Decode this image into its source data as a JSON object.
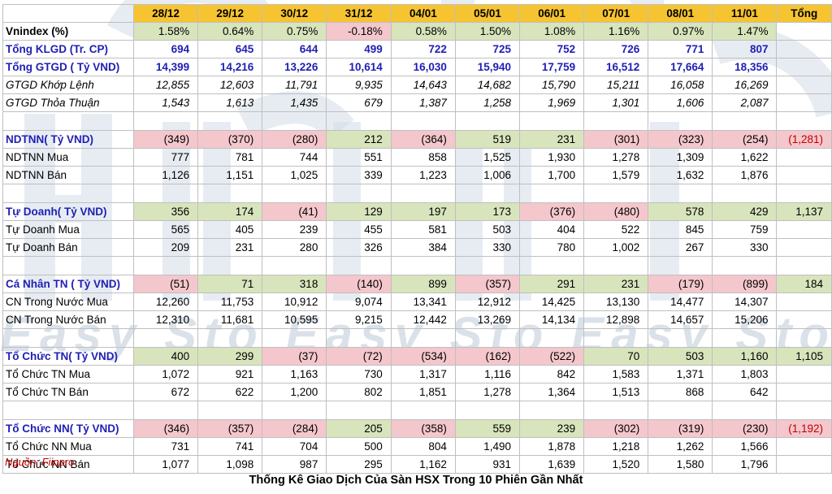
{
  "header": {
    "dates": [
      "28/12",
      "29/12",
      "30/12",
      "31/12",
      "04/01",
      "05/01",
      "06/01",
      "07/01",
      "08/01",
      "11/01"
    ],
    "total": "Tổng"
  },
  "groups": [
    {
      "rows": [
        {
          "label": "Vnindex (%)",
          "style": "head",
          "values": [
            "1.58%",
            "0.64%",
            "0.75%",
            "-0.18%",
            "0.58%",
            "1.50%",
            "1.08%",
            "1.16%",
            "0.97%",
            "1.47%"
          ]
        },
        {
          "label": "Tổng KLGD (Tr. CP)",
          "style": "blue",
          "values": [
            "694",
            "645",
            "644",
            "499",
            "722",
            "725",
            "752",
            "726",
            "771",
            "807"
          ]
        },
        {
          "label": "Tổng GTGD ( Tỷ VND)",
          "style": "blue",
          "values": [
            "14,399",
            "14,216",
            "13,226",
            "10,614",
            "16,030",
            "15,940",
            "17,759",
            "16,512",
            "17,664",
            "18,356"
          ]
        },
        {
          "label": "GTGD Khớp Lệnh",
          "style": "italic",
          "values": [
            "12,855",
            "12,603",
            "11,791",
            "9,935",
            "14,643",
            "14,682",
            "15,790",
            "15,211",
            "16,058",
            "16,269"
          ]
        },
        {
          "label": "GTGD Thỏa Thuận",
          "style": "italic",
          "values": [
            "1,543",
            "1,613",
            "1,435",
            "679",
            "1,387",
            "1,258",
            "1,969",
            "1,301",
            "1,606",
            "2,087"
          ]
        }
      ]
    },
    {
      "rows": [
        {
          "label": "NDTNN( Tỷ VND)",
          "style": "net",
          "values": [
            "(349)",
            "(370)",
            "(280)",
            "212",
            "(364)",
            "519",
            "231",
            "(301)",
            "(323)",
            "(254)"
          ],
          "total": "(1,281)"
        },
        {
          "label": "NDTNN Mua",
          "style": "plain",
          "values": [
            "777",
            "781",
            "744",
            "551",
            "858",
            "1,525",
            "1,930",
            "1,278",
            "1,309",
            "1,622"
          ]
        },
        {
          "label": "NDTNN Bán",
          "style": "plain",
          "values": [
            "1,126",
            "1,151",
            "1,025",
            "339",
            "1,223",
            "1,006",
            "1,700",
            "1,579",
            "1,632",
            "1,876"
          ]
        }
      ]
    },
    {
      "rows": [
        {
          "label": "Tự Doanh( Tỷ VND)",
          "style": "net",
          "values": [
            "356",
            "174",
            "(41)",
            "129",
            "197",
            "173",
            "(376)",
            "(480)",
            "578",
            "429"
          ],
          "total": "1,137"
        },
        {
          "label": "Tự Doanh Mua",
          "style": "plain",
          "values": [
            "565",
            "405",
            "239",
            "455",
            "581",
            "503",
            "404",
            "522",
            "845",
            "759"
          ]
        },
        {
          "label": "Tự Doanh Bán",
          "style": "plain",
          "values": [
            "209",
            "231",
            "280",
            "326",
            "384",
            "330",
            "780",
            "1,002",
            "267",
            "330"
          ]
        }
      ]
    },
    {
      "rows": [
        {
          "label": "Cá Nhân TN ( Tỷ VND)",
          "style": "net",
          "values": [
            "(51)",
            "71",
            "318",
            "(140)",
            "899",
            "(357)",
            "291",
            "231",
            "(179)",
            "(899)"
          ],
          "total": "184"
        },
        {
          "label": "CN Trong Nước Mua",
          "style": "plain",
          "values": [
            "12,260",
            "11,753",
            "10,912",
            "9,074",
            "13,341",
            "12,912",
            "14,425",
            "13,130",
            "14,477",
            "14,307"
          ]
        },
        {
          "label": "CN Trong Nước Bán",
          "style": "plain",
          "values": [
            "12,310",
            "11,681",
            "10,595",
            "9,215",
            "12,442",
            "13,269",
            "14,134",
            "12,898",
            "14,657",
            "15,206"
          ]
        }
      ]
    },
    {
      "rows": [
        {
          "label": "Tổ Chức TN( Tỷ VND)",
          "style": "net",
          "values": [
            "400",
            "299",
            "(37)",
            "(72)",
            "(534)",
            "(162)",
            "(522)",
            "70",
            "503",
            "1,160"
          ],
          "total": "1,105"
        },
        {
          "label": "Tổ Chức TN Mua",
          "style": "plain",
          "values": [
            "1,072",
            "921",
            "1,163",
            "730",
            "1,317",
            "1,116",
            "842",
            "1,583",
            "1,371",
            "1,803"
          ]
        },
        {
          "label": "Tổ Chức TN Bán",
          "style": "plain",
          "values": [
            "672",
            "622",
            "1,200",
            "802",
            "1,851",
            "1,278",
            "1,364",
            "1,513",
            "868",
            "642"
          ]
        }
      ]
    },
    {
      "rows": [
        {
          "label": "Tổ Chức NN( Tỷ VND)",
          "style": "net",
          "values": [
            "(346)",
            "(357)",
            "(284)",
            "205",
            "(358)",
            "559",
            "239",
            "(302)",
            "(319)",
            "(230)"
          ],
          "total": "(1,192)"
        },
        {
          "label": "Tổ Chức NN Mua",
          "style": "plain",
          "values": [
            "731",
            "741",
            "704",
            "500",
            "804",
            "1,490",
            "1,878",
            "1,218",
            "1,262",
            "1,566"
          ]
        },
        {
          "label": "Tổ Chức NN Bán",
          "style": "plain",
          "values": [
            "1,077",
            "1,098",
            "987",
            "295",
            "1,162",
            "931",
            "1,639",
            "1,520",
            "1,580",
            "1,796"
          ]
        }
      ]
    }
  ],
  "watermark": "Easy Sto Easy Sto Easy Sto",
  "source": "Nguồn: Fiinpro",
  "caption": "Thống Kê Giao Dịch Của Sàn HSX Trong 10 Phiên Gần Nhất",
  "colors": {
    "header": "#f7c431",
    "positive": "#d8e4bc",
    "negative": "#f4c7cc",
    "blue_text": "#1f1fb4",
    "source_text": "#c00000"
  }
}
